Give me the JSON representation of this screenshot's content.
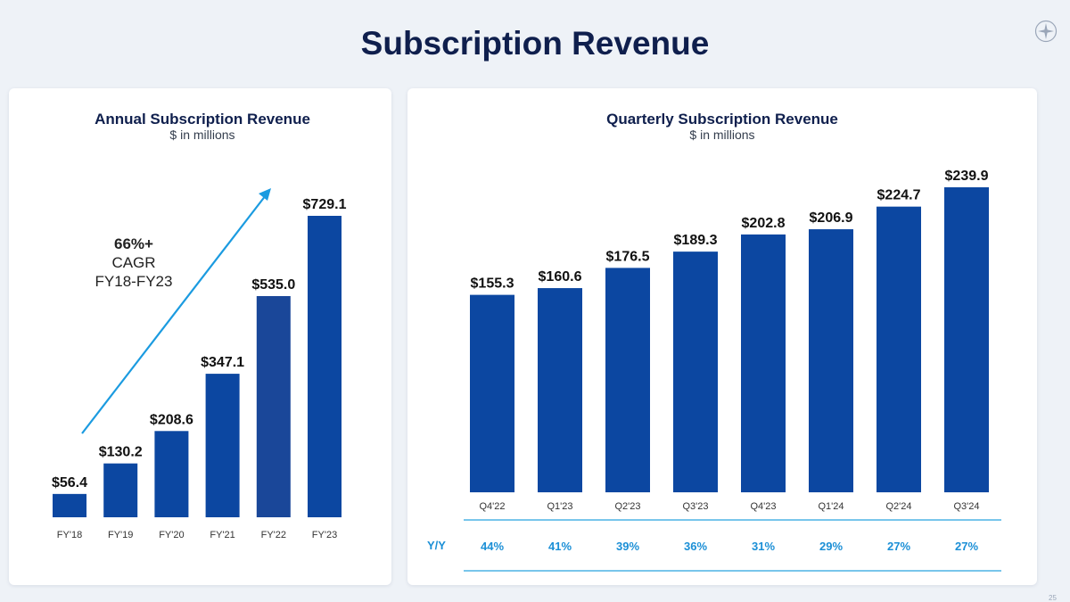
{
  "page": {
    "title": "Subscription Revenue",
    "page_number": "25",
    "logo_icon": "compass-star-icon"
  },
  "chart_data": [
    {
      "type": "bar",
      "title": "Annual Subscription Revenue",
      "subtitle": "$ in millions",
      "categories": [
        "FY'18",
        "FY'19",
        "FY'20",
        "FY'21",
        "FY'22",
        "FY'23"
      ],
      "values": [
        56.4,
        130.2,
        208.6,
        347.1,
        535.0,
        729.1
      ],
      "value_labels": [
        "$56.4",
        "$130.2",
        "$208.6",
        "$347.1",
        "$535.0",
        "$729.1"
      ],
      "ylim": [
        0,
        729.1
      ],
      "bar_colors": [
        "#0c47a1",
        "#0c47a1",
        "#0c47a1",
        "#0c47a1",
        "#1a4799",
        "#0c47a1"
      ],
      "grid": false,
      "annotation": {
        "lines": [
          "66%+",
          "CAGR",
          "FY18-FY23"
        ],
        "arrow_color": "#1b9be0"
      }
    },
    {
      "type": "bar",
      "title": "Quarterly Subscription Revenue",
      "subtitle": "$ in millions",
      "categories": [
        "Q4'22",
        "Q1'23",
        "Q2'23",
        "Q3'23",
        "Q4'23",
        "Q1'24",
        "Q2'24",
        "Q3'24"
      ],
      "values": [
        155.3,
        160.6,
        176.5,
        189.3,
        202.8,
        206.9,
        224.7,
        239.9
      ],
      "value_labels": [
        "$155.3",
        "$160.6",
        "$176.5",
        "$189.3",
        "$202.8",
        "$206.9",
        "$224.7",
        "$239.9"
      ],
      "ylim": [
        0,
        239.9
      ],
      "bar_color": "#0c47a1",
      "grid": false,
      "yoy": {
        "label": "Y/Y",
        "values": [
          "44%",
          "41%",
          "39%",
          "36%",
          "31%",
          "29%",
          "27%",
          "27%"
        ],
        "color": "#1b8fd6",
        "rule_color": "#28a5df"
      }
    }
  ]
}
